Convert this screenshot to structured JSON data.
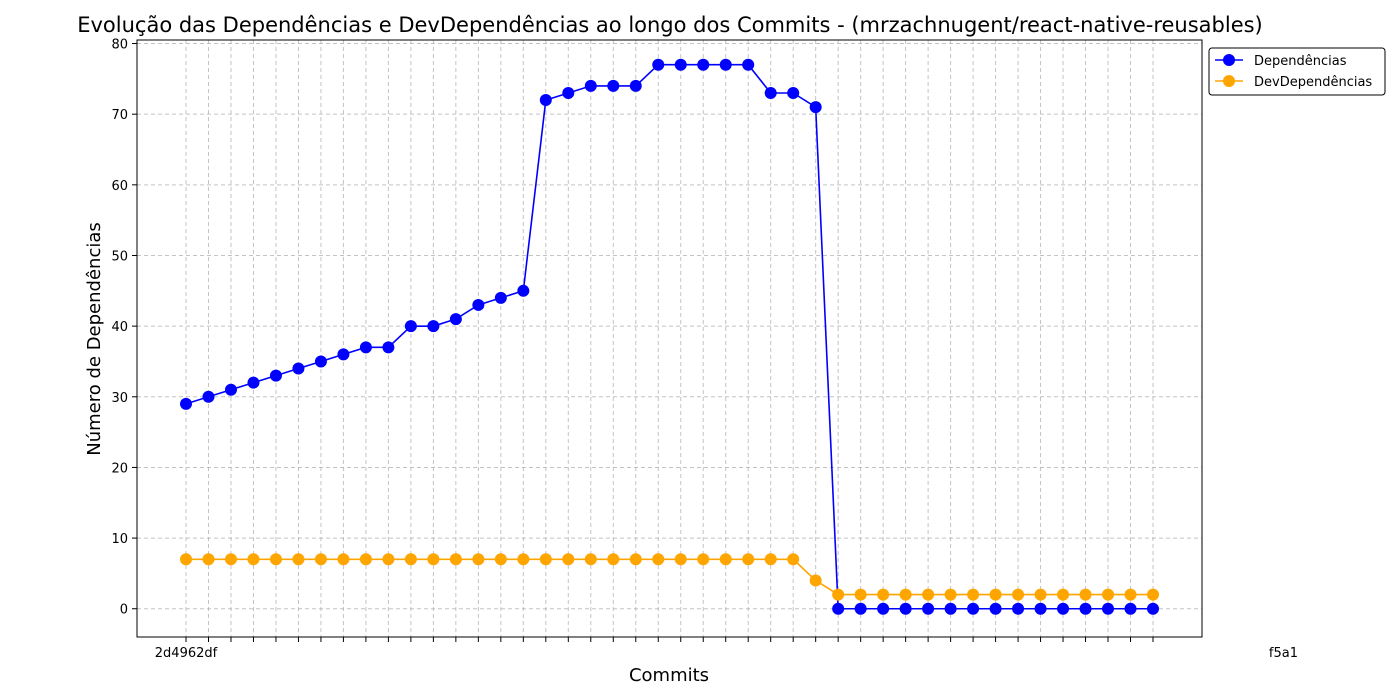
{
  "chart_data": {
    "type": "line",
    "title": "Evolução das Dependências e DevDependências ao longo dos Commits - (mrzachnugent/react-native-reusables)",
    "xlabel": "Commits",
    "ylabel": "Número de Dependências",
    "ylim": [
      -4,
      80.5
    ],
    "yticks": [
      0,
      10,
      20,
      30,
      40,
      50,
      60,
      70,
      80
    ],
    "grid": true,
    "legend_position": "outside-top-right",
    "x_count": 44,
    "x_first_label": "2d4962df",
    "x_last_label": "f5a1",
    "series": [
      {
        "name": "Dependências",
        "color": "#0000ff",
        "values": [
          29,
          30,
          31,
          32,
          33,
          34,
          35,
          36,
          37,
          37,
          40,
          40,
          41,
          43,
          44,
          45,
          72,
          73,
          74,
          74,
          74,
          77,
          77,
          77,
          77,
          77,
          73,
          73,
          71,
          0,
          0,
          0,
          0,
          0,
          0,
          0,
          0,
          0,
          0,
          0,
          0,
          0,
          0,
          0
        ]
      },
      {
        "name": "DevDependências",
        "color": "#ffa500",
        "values": [
          7,
          7,
          7,
          7,
          7,
          7,
          7,
          7,
          7,
          7,
          7,
          7,
          7,
          7,
          7,
          7,
          7,
          7,
          7,
          7,
          7,
          7,
          7,
          7,
          7,
          7,
          7,
          7,
          4,
          2,
          2,
          2,
          2,
          2,
          2,
          2,
          2,
          2,
          2,
          2,
          2,
          2,
          2,
          2
        ]
      }
    ]
  }
}
